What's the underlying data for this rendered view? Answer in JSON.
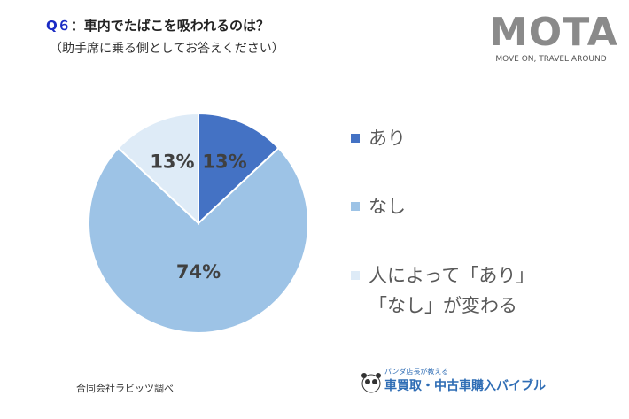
{
  "chart_data": {
    "type": "pie",
    "title_number": "Q６",
    "title": "：車内でたばこを吸われるのは？",
    "subtitle": "（助手席に乗る側としてお答えください）",
    "categories": [
      "あり",
      "なし",
      "人によって「あり」「なし」が変わる"
    ],
    "values": [
      13,
      74,
      13
    ],
    "value_labels": [
      "13%",
      "74%",
      "13%"
    ],
    "colors": [
      "#4472c4",
      "#9dc3e6",
      "#deebf7"
    ],
    "legend": "right"
  },
  "source": "合同会社ラビッツ調べ",
  "logo": {
    "name": "MOTA",
    "tagline": "MOVE ON, TRAVEL AROUND"
  },
  "footer_logo": {
    "caption": "パンダ店長が教える",
    "name": "車買取・中古車購入バイブル"
  }
}
